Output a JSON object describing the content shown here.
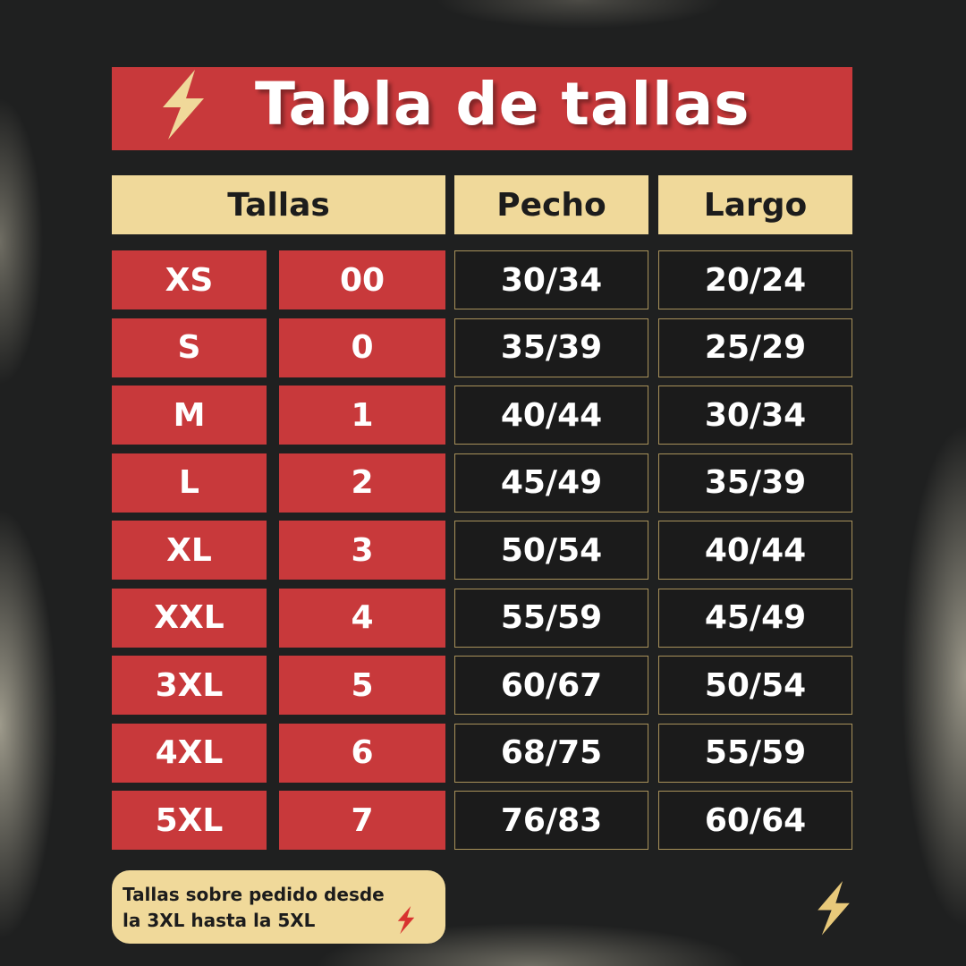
{
  "title": "Tabla de tallas",
  "icons": {
    "title": "lightning-bolt-icon",
    "note": "lightning-bolt-icon",
    "corner": "lightning-bolt-icon"
  },
  "colors": {
    "red": "#c8393b",
    "cream": "#f0d99a",
    "background": "#1f2020"
  },
  "headers": {
    "tallas": "Tallas",
    "pecho": "Pecho",
    "largo": "Largo"
  },
  "rows": [
    {
      "talla": "XS",
      "num": "00",
      "pecho": "30/34",
      "largo": "20/24"
    },
    {
      "talla": "S",
      "num": "0",
      "pecho": "35/39",
      "largo": "25/29"
    },
    {
      "talla": "M",
      "num": "1",
      "pecho": "40/44",
      "largo": "30/34"
    },
    {
      "talla": "L",
      "num": "2",
      "pecho": "45/49",
      "largo": "35/39"
    },
    {
      "talla": "XL",
      "num": "3",
      "pecho": "50/54",
      "largo": "40/44"
    },
    {
      "talla": "XXL",
      "num": "4",
      "pecho": "55/59",
      "largo": "45/49"
    },
    {
      "talla": "3XL",
      "num": "5",
      "pecho": "60/67",
      "largo": "50/54"
    },
    {
      "talla": "4XL",
      "num": "6",
      "pecho": "68/75",
      "largo": "55/59"
    },
    {
      "talla": "5XL",
      "num": "7",
      "pecho": "76/83",
      "largo": "60/64"
    }
  ],
  "note": {
    "line1": "Tallas sobre pedido desde",
    "line2": "la 3XL hasta la 5XL"
  }
}
